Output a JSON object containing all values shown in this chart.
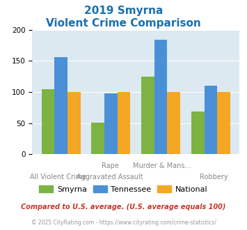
{
  "title_line1": "2019 Smyrna",
  "title_line2": "Violent Crime Comparison",
  "title_color": "#1a6faf",
  "cat_labels_top": [
    "",
    "Rape",
    "Murder & Mans...",
    ""
  ],
  "cat_labels_bot": [
    "All Violent Crime",
    "Aggravated Assault",
    "",
    "Robbery"
  ],
  "smyrna_values": [
    104,
    51,
    125,
    69
  ],
  "tennessee_values": [
    156,
    98,
    184,
    110
  ],
  "national_values": [
    100,
    100,
    100,
    100
  ],
  "smyrna_color": "#7cb342",
  "tennessee_color": "#4a90d9",
  "national_color": "#f5a623",
  "ylim": [
    0,
    200
  ],
  "yticks": [
    0,
    50,
    100,
    150,
    200
  ],
  "plot_bg": "#dce9f0",
  "legend_labels": [
    "Smyrna",
    "Tennessee",
    "National"
  ],
  "footnote1": "Compared to U.S. average. (U.S. average equals 100)",
  "footnote2": "© 2025 CityRating.com - https://www.cityrating.com/crime-statistics/",
  "footnote1_color": "#c0392b",
  "footnote2_color": "#999999",
  "footnote2_link_color": "#4a90d9"
}
